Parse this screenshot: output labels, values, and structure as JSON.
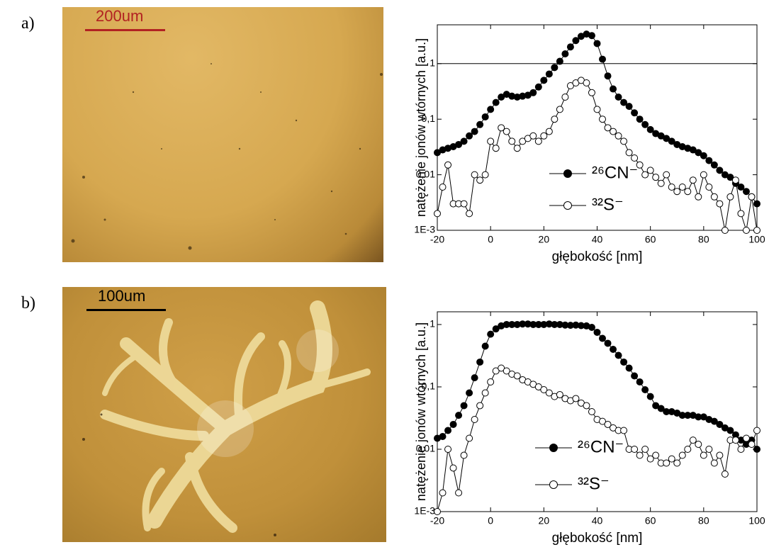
{
  "panels": [
    {
      "label": "a)",
      "scale_bar": "200um"
    },
    {
      "label": "b)",
      "scale_bar": "100um"
    }
  ],
  "chart_data": [
    {
      "type": "line",
      "log_y": true,
      "ylabel": "natężenie jonów wtórnych [a.u.]",
      "xlabel": "głębokość [nm]",
      "xlim": [
        -20,
        100
      ],
      "xticks": [
        -20,
        0,
        20,
        40,
        60,
        80,
        100
      ],
      "ylim": [
        0.001,
        5
      ],
      "yticks": [
        {
          "value": 0.001,
          "label": "1E-3"
        },
        {
          "value": 0.01,
          "label": "0,01"
        },
        {
          "value": 0.1,
          "label": "0,1"
        },
        1
      ],
      "hline": 1,
      "x": [
        -20,
        -18,
        -16,
        -14,
        -12,
        -10,
        -8,
        -6,
        -4,
        -2,
        0,
        2,
        4,
        6,
        8,
        10,
        12,
        14,
        16,
        18,
        20,
        22,
        24,
        26,
        28,
        30,
        32,
        34,
        36,
        38,
        40,
        42,
        44,
        46,
        48,
        50,
        52,
        54,
        56,
        58,
        60,
        62,
        64,
        66,
        68,
        70,
        72,
        74,
        76,
        78,
        80,
        82,
        84,
        86,
        88,
        90,
        92,
        94,
        96,
        98,
        100
      ],
      "series": [
        {
          "name": "²⁶CN⁻",
          "color": "#000000",
          "marker": "filled",
          "values": [
            0.025,
            0.028,
            0.03,
            0.032,
            0.035,
            0.04,
            0.05,
            0.06,
            0.08,
            0.11,
            0.15,
            0.2,
            0.25,
            0.28,
            0.26,
            0.25,
            0.26,
            0.27,
            0.3,
            0.38,
            0.5,
            0.65,
            0.85,
            1.1,
            1.5,
            2,
            2.6,
            3.1,
            3.4,
            3.2,
            2.3,
            1.2,
            0.6,
            0.35,
            0.25,
            0.2,
            0.17,
            0.13,
            0.1,
            0.08,
            0.065,
            0.055,
            0.05,
            0.045,
            0.04,
            0.035,
            0.032,
            0.03,
            0.028,
            0.025,
            0.022,
            0.018,
            0.015,
            0.012,
            0.01,
            0.009,
            0.007,
            0.006,
            0.005,
            0.004,
            0.003
          ]
        },
        {
          "name": "³²S⁻",
          "color": "#000000",
          "marker": "open",
          "values": [
            0.002,
            0.006,
            0.015,
            0.003,
            0.003,
            0.003,
            0.002,
            0.01,
            0.008,
            0.01,
            0.04,
            0.03,
            0.07,
            0.06,
            0.04,
            0.03,
            0.04,
            0.045,
            0.05,
            0.04,
            0.05,
            0.06,
            0.1,
            0.15,
            0.25,
            0.4,
            0.45,
            0.5,
            0.45,
            0.3,
            0.15,
            0.1,
            0.07,
            0.06,
            0.05,
            0.04,
            0.025,
            0.02,
            0.015,
            0.01,
            0.012,
            0.009,
            0.007,
            0.01,
            0.006,
            0.005,
            0.006,
            0.005,
            0.008,
            0.004,
            0.01,
            0.006,
            0.004,
            0.003,
            0.001,
            0.004,
            0.008,
            0.002,
            0.001,
            0.004,
            0.001
          ]
        }
      ]
    },
    {
      "type": "line",
      "log_y": true,
      "ylabel": "natężenie jonów wtórnych [a.u.]",
      "xlabel": "głębokość [nm]",
      "xlim": [
        -20,
        100
      ],
      "xticks": [
        -20,
        0,
        20,
        40,
        60,
        80,
        100
      ],
      "ylim": [
        0.001,
        1.6
      ],
      "yticks": [
        {
          "value": 0.001,
          "label": "1E-3"
        },
        {
          "value": 0.01,
          "label": "0,01"
        },
        {
          "value": 0.1,
          "label": "0,1"
        },
        1
      ],
      "x": [
        -20,
        -18,
        -16,
        -14,
        -12,
        -10,
        -8,
        -6,
        -4,
        -2,
        0,
        2,
        4,
        6,
        8,
        10,
        12,
        14,
        16,
        18,
        20,
        22,
        24,
        26,
        28,
        30,
        32,
        34,
        36,
        38,
        40,
        42,
        44,
        46,
        48,
        50,
        52,
        54,
        56,
        58,
        60,
        62,
        64,
        66,
        68,
        70,
        72,
        74,
        76,
        78,
        80,
        82,
        84,
        86,
        88,
        90,
        92,
        94,
        96,
        98,
        100
      ],
      "series": [
        {
          "name": "²⁶CN⁻",
          "color": "#000000",
          "marker": "filled",
          "values": [
            0.015,
            0.016,
            0.02,
            0.025,
            0.035,
            0.05,
            0.08,
            0.14,
            0.25,
            0.45,
            0.7,
            0.85,
            0.95,
            1,
            1,
            1,
            1.02,
            1.02,
            1,
            1,
            1,
            1.02,
            1,
            1,
            0.98,
            0.97,
            0.98,
            0.96,
            0.95,
            0.9,
            0.75,
            0.6,
            0.5,
            0.4,
            0.32,
            0.25,
            0.2,
            0.15,
            0.12,
            0.09,
            0.07,
            0.05,
            0.045,
            0.04,
            0.04,
            0.038,
            0.035,
            0.035,
            0.035,
            0.033,
            0.033,
            0.03,
            0.028,
            0.025,
            0.022,
            0.02,
            0.017,
            0.014,
            0.012,
            0.014,
            0.01
          ]
        },
        {
          "name": "³²S⁻",
          "color": "#000000",
          "marker": "open",
          "values": [
            0.001,
            0.002,
            0.01,
            0.005,
            0.002,
            0.008,
            0.015,
            0.03,
            0.05,
            0.08,
            0.12,
            0.18,
            0.2,
            0.18,
            0.16,
            0.15,
            0.13,
            0.12,
            0.11,
            0.1,
            0.09,
            0.08,
            0.07,
            0.075,
            0.065,
            0.06,
            0.065,
            0.055,
            0.05,
            0.04,
            0.03,
            0.028,
            0.025,
            0.022,
            0.02,
            0.02,
            0.01,
            0.01,
            0.008,
            0.01,
            0.007,
            0.008,
            0.006,
            0.006,
            0.007,
            0.006,
            0.008,
            0.01,
            0.014,
            0.012,
            0.008,
            0.01,
            0.006,
            0.008,
            0.004,
            0.014,
            0.014,
            0.01,
            0.015,
            0.012,
            0.02
          ]
        }
      ]
    }
  ]
}
